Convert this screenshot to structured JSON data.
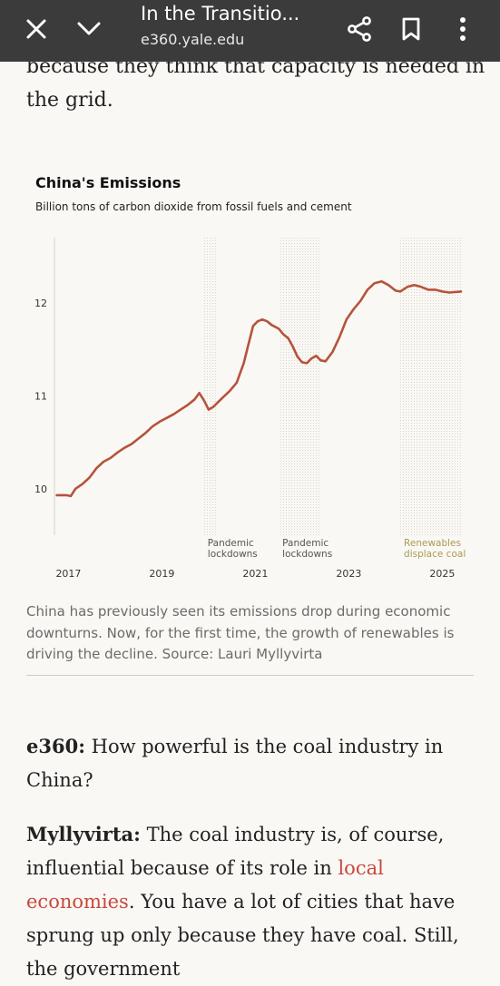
{
  "browser": {
    "title": "In the Transitio...",
    "url": "e360.yale.edu",
    "icons": [
      "close-icon",
      "chevron-down-icon",
      "share-icon",
      "bookmark-icon",
      "more-vertical-icon"
    ]
  },
  "article": {
    "top_cut_line": "because they think that capacity is needed in",
    "para1": "the grid.",
    "q_speaker": "e360:",
    "q_text": " How powerful is the coal industry in China?",
    "a_speaker": "Myllyvirta:",
    "a_text_1": " The coal industry is, of course, influential because of its role in ",
    "a_link": "local economies",
    "a_text_2": ". You have a lot of cities that have sprung up only because they have coal. Still, the government"
  },
  "chart": {
    "title": "China's Emissions",
    "subtitle": "Billion tons of carbon dioxide from fossil fuels and cement",
    "caption": "China has previously seen its emissions drop during economic downturns. Now, for the first time, the growth of renewables is driving the decline. Source: Lauri Myllyvirta",
    "line_color": "#b5533c"
  },
  "chart_data": {
    "type": "line",
    "title": "China's Emissions",
    "ylabel": "Billion tons of carbon dioxide from fossil fuels and cement",
    "xlim": [
      2016.7,
      2025.4
    ],
    "ylim": [
      9.5,
      12.7
    ],
    "yticks": [
      10,
      11,
      12
    ],
    "xticks": [
      2017,
      2019,
      2021,
      2023,
      2025
    ],
    "annotations": [
      {
        "label": [
          "Pandemic",
          "lockdowns"
        ],
        "x_range": [
          2019.9,
          2020.2
        ]
      },
      {
        "label": [
          "Pandemic",
          "lockdowns"
        ],
        "x_range": [
          2021.5,
          2022.4
        ]
      },
      {
        "label": [
          "Renewables",
          "displace coal"
        ],
        "x_range": [
          2024.1,
          2025.4
        ]
      }
    ],
    "series": [
      {
        "x": [
          2016.75,
          2016.95,
          2017.05,
          2017.15,
          2017.3,
          2017.45,
          2017.6,
          2017.75,
          2017.9,
          2018.05,
          2018.2,
          2018.35,
          2018.5,
          2018.65,
          2018.8,
          2018.95,
          2019.1,
          2019.25,
          2019.4,
          2019.55,
          2019.7,
          2019.8,
          2019.9,
          2020.0,
          2020.1,
          2020.2,
          2020.3,
          2020.45,
          2020.6,
          2020.75,
          2020.85,
          2020.95,
          2021.05,
          2021.15,
          2021.25,
          2021.35,
          2021.5,
          2021.6,
          2021.7,
          2021.8,
          2021.9,
          2022.0,
          2022.1,
          2022.2,
          2022.3,
          2022.4,
          2022.5,
          2022.65,
          2022.8,
          2022.95,
          2023.1,
          2023.25,
          2023.4,
          2023.55,
          2023.7,
          2023.85,
          2024.0,
          2024.1,
          2024.25,
          2024.4,
          2024.55,
          2024.7,
          2024.85,
          2025.0,
          2025.15,
          2025.4
        ],
        "y": [
          9.93,
          9.93,
          9.92,
          10.0,
          10.05,
          10.12,
          10.22,
          10.29,
          10.33,
          10.39,
          10.44,
          10.48,
          10.54,
          10.6,
          10.67,
          10.72,
          10.76,
          10.8,
          10.85,
          10.9,
          10.96,
          11.03,
          10.95,
          10.85,
          10.88,
          10.93,
          10.98,
          11.05,
          11.14,
          11.35,
          11.55,
          11.75,
          11.8,
          11.82,
          11.8,
          11.76,
          11.72,
          11.66,
          11.62,
          11.53,
          11.42,
          11.36,
          11.35,
          11.4,
          11.43,
          11.38,
          11.37,
          11.47,
          11.63,
          11.82,
          11.93,
          12.02,
          12.14,
          12.21,
          12.23,
          12.19,
          12.13,
          12.12,
          12.17,
          12.19,
          12.17,
          12.14,
          12.14,
          12.12,
          12.11,
          12.12
        ]
      }
    ]
  }
}
